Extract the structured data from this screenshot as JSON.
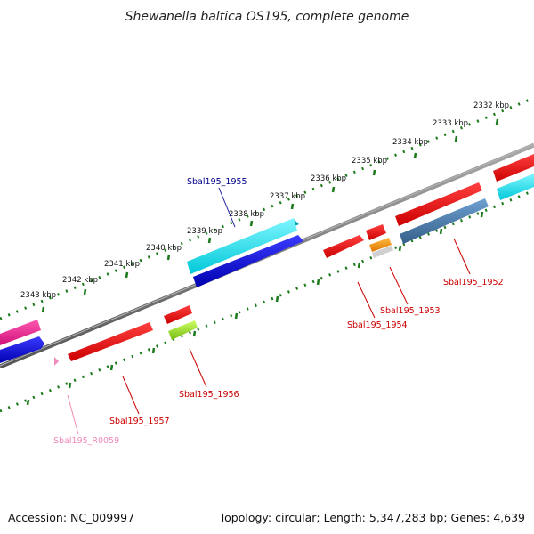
{
  "title": "Shewanella baltica OS195, complete genome",
  "footer": {
    "accession": "Accession: NC_009997",
    "summary": "Topology: circular; Length: 5,347,283 bp; Genes: 4,639"
  },
  "kbp_ticks": [
    "2332 kbp",
    "2333 kbp",
    "2334 kbp",
    "2335 kbp",
    "2336 kbp",
    "2337 kbp",
    "2338 kbp",
    "2339 kbp",
    "2340 kbp",
    "2341 kbp",
    "2342 kbp",
    "2343 kbp"
  ],
  "gene_labels": [
    {
      "text": "Sbal195_1955",
      "color": "#00008b"
    },
    {
      "text": "Sbal195_1952",
      "color": "#cc0000"
    },
    {
      "text": "Sbal195_1953",
      "color": "#cc0000"
    },
    {
      "text": "Sbal195_1954",
      "color": "#cc0000"
    },
    {
      "text": "Sbal195_1956",
      "color": "#cc0000"
    },
    {
      "text": "Sbal195_1957",
      "color": "#cc0000"
    },
    {
      "text": "Sbal195_R0059",
      "color": "#f08ab8"
    }
  ],
  "colors": {
    "backbone": "#7a7a7a",
    "ticks": "#1a7a1a",
    "cds_forward": "#ff0000",
    "cds_reverse": "#ff0000",
    "cyan_track": "#00e5ee",
    "blue_track": "#0000ee",
    "steel_track": "#4682b4",
    "pink_track": "#ff1493",
    "green_gene": "#99ee22",
    "orange_gene": "#ff9900",
    "rna": "#f08ab8"
  }
}
